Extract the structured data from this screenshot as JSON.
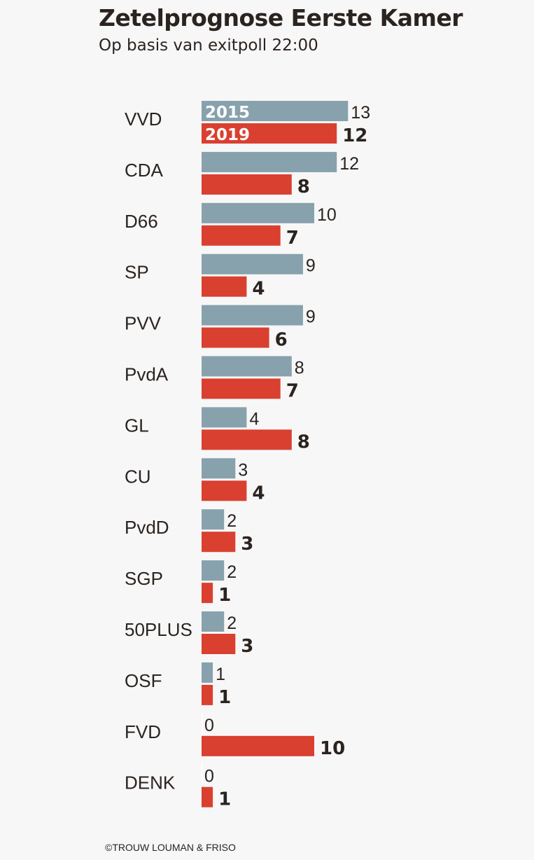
{
  "header": {
    "title": "Zetelprognose Eerste Kamer",
    "subtitle": "Op basis van exitpoll 22:00"
  },
  "credit": "©TROUW LOUMAN & FRISO",
  "chart_data": {
    "type": "bar",
    "orientation": "horizontal",
    "title": "Zetelprognose Eerste Kamer",
    "subtitle": "Op basis van exitpoll 22:00",
    "categories": [
      "VVD",
      "CDA",
      "D66",
      "SP",
      "PVV",
      "PvdA",
      "GL",
      "CU",
      "PvdD",
      "SGP",
      "50PLUS",
      "OSF",
      "FVD",
      "DENK"
    ],
    "series": [
      {
        "name": "2015",
        "color": "#87a2ad",
        "values": [
          13,
          12,
          10,
          9,
          9,
          8,
          4,
          3,
          2,
          2,
          2,
          1,
          0,
          0
        ]
      },
      {
        "name": "2019",
        "color": "#d94030",
        "values": [
          12,
          8,
          7,
          4,
          6,
          7,
          8,
          4,
          3,
          1,
          3,
          1,
          10,
          1
        ]
      }
    ],
    "legend": "inside first bars",
    "grid": false
  }
}
